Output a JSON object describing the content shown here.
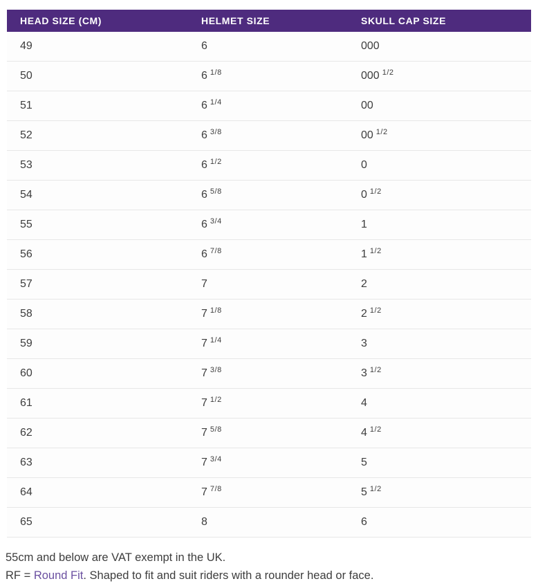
{
  "table": {
    "headers": [
      "HEAD SIZE (CM)",
      "HELMET SIZE",
      "SKULL CAP SIZE"
    ],
    "rows": [
      [
        "49",
        "6",
        "000"
      ],
      [
        "50",
        "6 1/8",
        "000 1/2"
      ],
      [
        "51",
        "6 1/4",
        "00"
      ],
      [
        "52",
        "6 3/8",
        "00 1/2"
      ],
      [
        "53",
        "6 1/2",
        "0"
      ],
      [
        "54",
        "6 5/8",
        "0 1/2"
      ],
      [
        "55",
        "6 3/4",
        "1"
      ],
      [
        "56",
        "6 7/8",
        "1 1/2"
      ],
      [
        "57",
        "7",
        "2"
      ],
      [
        "58",
        "7 1/8",
        "2 1/2"
      ],
      [
        "59",
        "7 1/4",
        "3"
      ],
      [
        "60",
        "7 3/8",
        "3 1/2"
      ],
      [
        "61",
        "7 1/2",
        "4"
      ],
      [
        "62",
        "7 5/8",
        "4 1/2"
      ],
      [
        "63",
        "7 3/4",
        "5"
      ],
      [
        "64",
        "7 7/8",
        "5 1/2"
      ],
      [
        "65",
        "8",
        "6"
      ]
    ]
  },
  "notes": {
    "vat_note": "55cm and below are VAT exempt in the UK.",
    "rf_prefix": "RF = ",
    "rf_link_text": "Round Fit",
    "rf_suffix": ". Shaped to fit and suit riders with a rounder head or face."
  },
  "colors": {
    "header_bg": "#4e2b7e",
    "header_text": "#ffffff",
    "body_text": "#3d3d3d",
    "divider": "#e7e7e7",
    "link": "#6a4fa0"
  },
  "chart_data": {
    "type": "table",
    "title": "Helmet sizing chart",
    "columns": [
      "HEAD SIZE (CM)",
      "HELMET SIZE",
      "SKULL CAP SIZE"
    ],
    "rows": [
      [
        "49",
        "6",
        "000"
      ],
      [
        "50",
        "6 1/8",
        "000 1/2"
      ],
      [
        "51",
        "6 1/4",
        "00"
      ],
      [
        "52",
        "6 3/8",
        "00 1/2"
      ],
      [
        "53",
        "6 1/2",
        "0"
      ],
      [
        "54",
        "6 5/8",
        "0 1/2"
      ],
      [
        "55",
        "6 3/4",
        "1"
      ],
      [
        "56",
        "6 7/8",
        "1 1/2"
      ],
      [
        "57",
        "7",
        "2"
      ],
      [
        "58",
        "7 1/8",
        "2 1/2"
      ],
      [
        "59",
        "7 1/4",
        "3"
      ],
      [
        "60",
        "7 3/8",
        "3 1/2"
      ],
      [
        "61",
        "7 1/2",
        "4"
      ],
      [
        "62",
        "7 5/8",
        "4 1/2"
      ],
      [
        "63",
        "7 3/4",
        "5"
      ],
      [
        "64",
        "7 7/8",
        "5 1/2"
      ],
      [
        "65",
        "8",
        "6"
      ]
    ]
  }
}
